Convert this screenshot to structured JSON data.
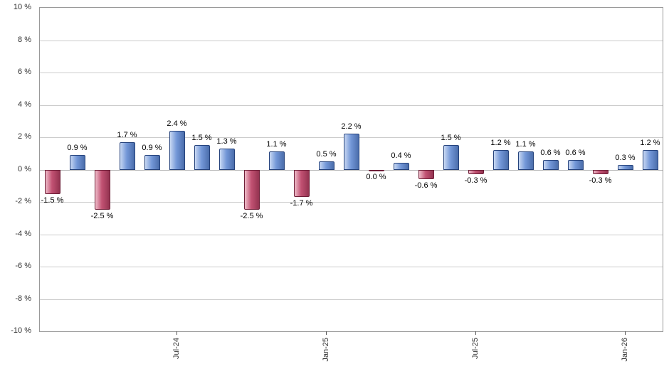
{
  "chart_data": {
    "type": "bar",
    "title": "",
    "xlabel": "",
    "ylabel": "",
    "ylim": [
      -10,
      10
    ],
    "grid": true,
    "legend": false,
    "y_ticks": [
      {
        "value": 10,
        "label": "10 %"
      },
      {
        "value": 8,
        "label": "8 %"
      },
      {
        "value": 6,
        "label": "6 %"
      },
      {
        "value": 4,
        "label": "4 %"
      },
      {
        "value": 2,
        "label": "2 %"
      },
      {
        "value": 0,
        "label": "0 %"
      },
      {
        "value": -2,
        "label": "-2 %"
      },
      {
        "value": -4,
        "label": "-4 %"
      },
      {
        "value": -6,
        "label": "-6 %"
      },
      {
        "value": -8,
        "label": "-8 %"
      },
      {
        "value": -10,
        "label": "-10 %"
      }
    ],
    "x_ticks": [
      {
        "bar_index": 5,
        "label": "Jul-24"
      },
      {
        "bar_index": 11,
        "label": "Jan-25"
      },
      {
        "bar_index": 17,
        "label": "Jul-25"
      },
      {
        "bar_index": 23,
        "label": "Jan-26"
      }
    ],
    "values": [
      -1.5,
      0.9,
      -2.5,
      1.7,
      0.9,
      2.4,
      1.5,
      1.3,
      -2.5,
      1.1,
      -1.7,
      0.5,
      2.2,
      0.0,
      0.4,
      -0.6,
      1.5,
      -0.3,
      1.2,
      1.1,
      0.6,
      0.6,
      -0.3,
      0.3,
      1.2
    ],
    "data_labels": [
      "-1.5 %",
      "0.9 %",
      "-2.5 %",
      "1.7 %",
      "0.9 %",
      "2.4 %",
      "1.5 %",
      "1.3 %",
      "-2.5 %",
      "1.1 %",
      "-1.7 %",
      "0.5 %",
      "2.2 %",
      "0.0 %",
      "0.4 %",
      "-0.6 %",
      "1.5 %",
      "-0.3 %",
      "1.2 %",
      "1.1 %",
      "0.6 %",
      "0.6 %",
      "-0.3 %",
      "0.3 %",
      "1.2 %"
    ],
    "bar_signs": [
      "neg",
      "pos",
      "neg",
      "pos",
      "pos",
      "pos",
      "pos",
      "pos",
      "neg",
      "pos",
      "neg",
      "pos",
      "pos",
      "neg",
      "pos",
      "neg",
      "pos",
      "neg",
      "pos",
      "pos",
      "pos",
      "pos",
      "neg",
      "pos",
      "pos"
    ],
    "colors": {
      "positive": {
        "light": "#c7d7f2",
        "mid": "#7498d8",
        "dark": "#4a6dab",
        "border": "#26437c"
      },
      "negative": {
        "light": "#eebcc9",
        "mid": "#c25273",
        "dark": "#943350",
        "border": "#6e1f38"
      },
      "gridline": "#cccccc",
      "zero_line": "#b3b3b3",
      "plot_border": "#999999",
      "tick": "#555555",
      "axis_text": "#333333",
      "label_text": "#000000"
    }
  }
}
